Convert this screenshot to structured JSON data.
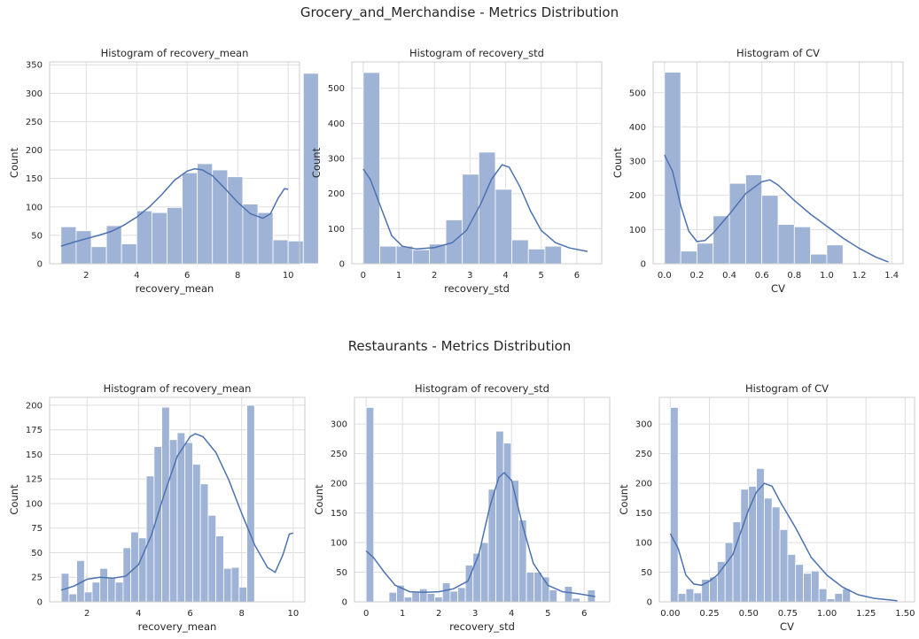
{
  "figure": {
    "groups": [
      {
        "title": "Grocery_and_Merchandise  - Metrics Distribution"
      },
      {
        "title": "Restaurants - Metrics Distribution"
      }
    ],
    "bar_color": "#9fb3d6",
    "line_color": "#4c72b0"
  },
  "chart_data": [
    {
      "type": "bar",
      "title": "Histogram of recovery_mean",
      "xlabel": "recovery_mean",
      "ylabel": "Count",
      "xlim": [
        0.55,
        10.45
      ],
      "ylim": [
        0,
        355
      ],
      "xticks": [
        2,
        4,
        6,
        8,
        10
      ],
      "yticks": [
        0,
        50,
        100,
        150,
        200,
        250,
        300,
        350
      ],
      "bin_start": 1,
      "bin_width": 0.6,
      "xtick_decimals": 0,
      "values": [
        65,
        58,
        30,
        67,
        35,
        93,
        90,
        99,
        160,
        176,
        165,
        153,
        105,
        90,
        42,
        40,
        335
      ],
      "kde": [
        [
          1,
          31
        ],
        [
          1.5,
          38
        ],
        [
          2,
          44
        ],
        [
          2.5,
          50
        ],
        [
          3,
          57
        ],
        [
          3.5,
          68
        ],
        [
          4,
          82
        ],
        [
          4.5,
          100
        ],
        [
          5,
          122
        ],
        [
          5.5,
          147
        ],
        [
          6,
          163
        ],
        [
          6.3,
          167
        ],
        [
          6.6,
          165
        ],
        [
          7,
          155
        ],
        [
          7.5,
          132
        ],
        [
          8,
          108
        ],
        [
          8.5,
          88
        ],
        [
          9,
          80
        ],
        [
          9.3,
          88
        ],
        [
          9.6,
          115
        ],
        [
          9.85,
          132
        ],
        [
          10,
          131
        ]
      ]
    },
    {
      "type": "bar",
      "title": "Histogram of recovery_std",
      "xlabel": "recovery_std",
      "ylabel": "Count",
      "xlim": [
        -0.32,
        6.7
      ],
      "ylim": [
        0,
        575
      ],
      "xticks": [
        0,
        1,
        2,
        3,
        4,
        5,
        6
      ],
      "yticks": [
        0,
        100,
        200,
        300,
        400,
        500
      ],
      "bin_start": 0,
      "bin_width": 0.464,
      "xtick_decimals": 0,
      "values": [
        545,
        50,
        50,
        40,
        56,
        125,
        255,
        318,
        212,
        68,
        42,
        50
      ],
      "kde": [
        [
          0,
          270
        ],
        [
          0.2,
          240
        ],
        [
          0.5,
          160
        ],
        [
          0.8,
          80
        ],
        [
          1.1,
          50
        ],
        [
          1.5,
          42
        ],
        [
          2,
          46
        ],
        [
          2.5,
          60
        ],
        [
          2.9,
          95
        ],
        [
          3.3,
          170
        ],
        [
          3.6,
          240
        ],
        [
          3.9,
          282
        ],
        [
          4.1,
          275
        ],
        [
          4.4,
          220
        ],
        [
          4.7,
          150
        ],
        [
          5,
          95
        ],
        [
          5.4,
          60
        ],
        [
          5.8,
          45
        ],
        [
          6.3,
          35
        ]
      ]
    },
    {
      "type": "bar",
      "title": "Histogram of CV",
      "xlabel": "CV",
      "ylabel": "Count",
      "xlim": [
        -0.07,
        1.47
      ],
      "ylim": [
        0,
        590
      ],
      "xticks": [
        0.0,
        0.2,
        0.4,
        0.6,
        0.8,
        1.0,
        1.2,
        1.4
      ],
      "yticks": [
        0,
        100,
        200,
        300,
        400,
        500
      ],
      "bin_start": 0,
      "bin_width": 0.1,
      "xtick_decimals": 1,
      "values": [
        560,
        37,
        60,
        140,
        235,
        260,
        200,
        115,
        108,
        28,
        55
      ],
      "kde": [
        [
          0,
          318
        ],
        [
          0.05,
          270
        ],
        [
          0.1,
          170
        ],
        [
          0.15,
          95
        ],
        [
          0.2,
          65
        ],
        [
          0.25,
          68
        ],
        [
          0.3,
          90
        ],
        [
          0.4,
          145
        ],
        [
          0.5,
          205
        ],
        [
          0.6,
          240
        ],
        [
          0.65,
          245
        ],
        [
          0.7,
          230
        ],
        [
          0.8,
          185
        ],
        [
          0.9,
          145
        ],
        [
          1.0,
          110
        ],
        [
          1.1,
          75
        ],
        [
          1.2,
          45
        ],
        [
          1.3,
          20
        ],
        [
          1.38,
          5
        ]
      ]
    },
    {
      "type": "bar",
      "title": "Histogram of recovery_mean",
      "xlabel": "recovery_mean",
      "ylabel": "Count",
      "xlim": [
        0.55,
        10.45
      ],
      "ylim": [
        0,
        208
      ],
      "xticks": [
        2,
        4,
        6,
        8,
        10
      ],
      "yticks": [
        0,
        25,
        50,
        75,
        100,
        125,
        150,
        175,
        200
      ],
      "bin_start": 1,
      "bin_width": 0.3,
      "xtick_decimals": 0,
      "values": [
        29,
        8,
        42,
        10,
        20,
        34,
        25,
        20,
        55,
        71,
        65,
        128,
        158,
        198,
        165,
        172,
        162,
        140,
        120,
        88,
        67,
        34,
        35,
        15,
        200
      ],
      "kde": [
        [
          1,
          12
        ],
        [
          1.5,
          16
        ],
        [
          2,
          23
        ],
        [
          2.5,
          25
        ],
        [
          3,
          24
        ],
        [
          3.5,
          26
        ],
        [
          4,
          38
        ],
        [
          4.5,
          68
        ],
        [
          5,
          110
        ],
        [
          5.5,
          148
        ],
        [
          6,
          168
        ],
        [
          6.2,
          171
        ],
        [
          6.5,
          168
        ],
        [
          7,
          152
        ],
        [
          7.5,
          124
        ],
        [
          8,
          90
        ],
        [
          8.5,
          58
        ],
        [
          9,
          35
        ],
        [
          9.3,
          30
        ],
        [
          9.6,
          48
        ],
        [
          9.85,
          69
        ],
        [
          10,
          70
        ]
      ]
    },
    {
      "type": "bar",
      "title": "Histogram of recovery_std",
      "xlabel": "recovery_std",
      "ylabel": "Count",
      "xlim": [
        -0.32,
        6.7
      ],
      "ylim": [
        0,
        345
      ],
      "xticks": [
        0,
        1,
        2,
        3,
        4,
        5,
        6
      ],
      "yticks": [
        0,
        50,
        100,
        150,
        200,
        250,
        300
      ],
      "bin_start": 0,
      "bin_width": 0.21,
      "xtick_decimals": 0,
      "values": [
        328,
        0,
        0,
        16,
        28,
        8,
        16,
        22,
        14,
        8,
        32,
        18,
        24,
        62,
        82,
        100,
        190,
        288,
        268,
        205,
        138,
        50,
        50,
        42,
        20,
        0,
        26,
        6,
        0,
        20
      ],
      "kde": [
        [
          0,
          86
        ],
        [
          0.2,
          75
        ],
        [
          0.5,
          50
        ],
        [
          0.8,
          28
        ],
        [
          1.2,
          17
        ],
        [
          1.6,
          16
        ],
        [
          2,
          17
        ],
        [
          2.4,
          22
        ],
        [
          2.8,
          35
        ],
        [
          3.1,
          80
        ],
        [
          3.4,
          160
        ],
        [
          3.65,
          210
        ],
        [
          3.8,
          218
        ],
        [
          4,
          205
        ],
        [
          4.3,
          130
        ],
        [
          4.6,
          65
        ],
        [
          5,
          28
        ],
        [
          5.4,
          17
        ],
        [
          5.8,
          14
        ],
        [
          6.3,
          9
        ]
      ]
    },
    {
      "type": "bar",
      "title": "Histogram of CV",
      "xlabel": "CV",
      "ylabel": "Count",
      "xlim": [
        -0.07,
        1.56
      ],
      "ylim": [
        0,
        345
      ],
      "xticks": [
        0.0,
        0.25,
        0.5,
        0.75,
        1.0,
        1.25,
        1.5
      ],
      "yticks": [
        0,
        50,
        100,
        150,
        200,
        250,
        300
      ],
      "bin_start": 0,
      "bin_width": 0.05,
      "xtick_decimals": 2,
      "values": [
        328,
        14,
        22,
        15,
        38,
        42,
        68,
        100,
        135,
        190,
        195,
        225,
        175,
        160,
        122,
        80,
        63,
        48,
        52,
        22,
        5,
        14,
        22
      ],
      "kde": [
        [
          0,
          115
        ],
        [
          0.05,
          90
        ],
        [
          0.1,
          45
        ],
        [
          0.15,
          30
        ],
        [
          0.2,
          28
        ],
        [
          0.25,
          35
        ],
        [
          0.3,
          45
        ],
        [
          0.4,
          80
        ],
        [
          0.5,
          155
        ],
        [
          0.55,
          185
        ],
        [
          0.6,
          200
        ],
        [
          0.65,
          195
        ],
        [
          0.7,
          170
        ],
        [
          0.8,
          125
        ],
        [
          0.9,
          75
        ],
        [
          1.0,
          45
        ],
        [
          1.1,
          25
        ],
        [
          1.2,
          12
        ],
        [
          1.3,
          6
        ],
        [
          1.45,
          2
        ]
      ]
    }
  ]
}
